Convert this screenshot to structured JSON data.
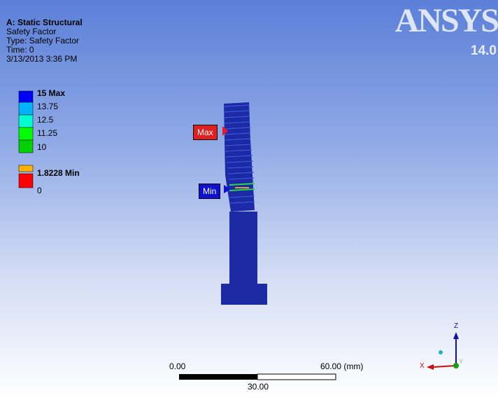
{
  "viewport_info": {
    "title": "A: Static Structural",
    "lines": [
      "Safety Factor",
      "Type: Safety Factor",
      "Time: 0",
      "3/13/2013 3:36 PM"
    ]
  },
  "legend": {
    "labels": [
      "15 Max",
      "13.75",
      "12.5",
      "11.25",
      "10",
      "1.8228 Min",
      "0"
    ]
  },
  "logo": {
    "brand": "ANSYS",
    "version": "14.0"
  },
  "probes": {
    "max": "Max",
    "min": "Min"
  },
  "scale_bar": {
    "start": "0.00",
    "end": "60.00 (mm)",
    "middle": "30.00"
  },
  "triad": {
    "z": "Z",
    "x": "X",
    "y": "Y"
  }
}
